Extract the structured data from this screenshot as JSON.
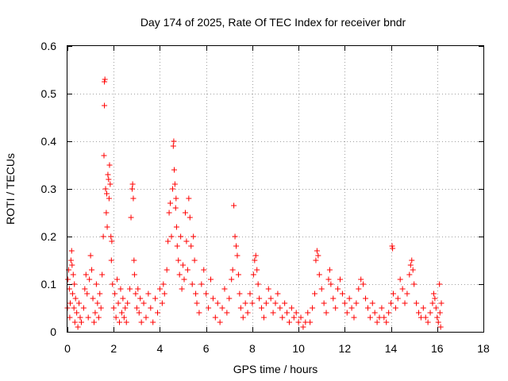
{
  "chart_data": {
    "type": "scatter",
    "title": "Day 174 of 2025, Rate Of TEC Index for receiver bndr",
    "xlabel": "GPS time / hours",
    "ylabel": "ROTI / TECUs",
    "xlim": [
      0,
      18
    ],
    "ylim": [
      0,
      0.6
    ],
    "x_ticks": [
      "0",
      "2",
      "4",
      "6",
      "8",
      "10",
      "12",
      "14",
      "16",
      "18"
    ],
    "y_ticks": [
      "0",
      "0.1",
      "0.2",
      "0.3",
      "0.4",
      "0.5",
      "0.6"
    ],
    "grid": true,
    "marker": "+",
    "marker_color": "#ff0000",
    "series": [
      {
        "points": [
          [
            0.0,
            0.05
          ],
          [
            0.02,
            0.11
          ],
          [
            0.05,
            0.13
          ],
          [
            0.08,
            0.09
          ],
          [
            0.1,
            0.03
          ],
          [
            0.12,
            0.06
          ],
          [
            0.15,
            0.15
          ],
          [
            0.18,
            0.17
          ],
          [
            0.2,
            0.14
          ],
          [
            0.22,
            0.08
          ],
          [
            0.25,
            0.12
          ],
          [
            0.28,
            0.05
          ],
          [
            0.3,
            0.1
          ],
          [
            0.32,
            0.02
          ],
          [
            0.35,
            0.07
          ],
          [
            0.4,
            0.04
          ],
          [
            0.45,
            0.01
          ],
          [
            0.5,
            0.06
          ],
          [
            0.55,
            0.03
          ],
          [
            0.6,
            0.02
          ],
          [
            0.7,
            0.05
          ],
          [
            0.75,
            0.09
          ],
          [
            0.8,
            0.12
          ],
          [
            0.85,
            0.08
          ],
          [
            0.9,
            0.03
          ],
          [
            0.95,
            0.11
          ],
          [
            1.0,
            0.16
          ],
          [
            1.05,
            0.13
          ],
          [
            1.1,
            0.07
          ],
          [
            1.15,
            0.02
          ],
          [
            1.2,
            0.04
          ],
          [
            1.25,
            0.1
          ],
          [
            1.3,
            0.06
          ],
          [
            1.35,
            0.03
          ],
          [
            1.4,
            0.08
          ],
          [
            1.45,
            0.05
          ],
          [
            1.5,
            0.12
          ],
          [
            1.55,
            0.2
          ],
          [
            1.58,
            0.37
          ],
          [
            1.6,
            0.475
          ],
          [
            1.6,
            0.525
          ],
          [
            1.62,
            0.53
          ],
          [
            1.65,
            0.3
          ],
          [
            1.68,
            0.25
          ],
          [
            1.7,
            0.29
          ],
          [
            1.72,
            0.22
          ],
          [
            1.75,
            0.33
          ],
          [
            1.78,
            0.32
          ],
          [
            1.8,
            0.28
          ],
          [
            1.82,
            0.35
          ],
          [
            1.85,
            0.31
          ],
          [
            1.88,
            0.2
          ],
          [
            1.9,
            0.15
          ],
          [
            1.92,
            0.19
          ],
          [
            1.95,
            0.1
          ],
          [
            2.0,
            0.05
          ],
          [
            2.05,
            0.08
          ],
          [
            2.1,
            0.03
          ],
          [
            2.15,
            0.11
          ],
          [
            2.2,
            0.06
          ],
          [
            2.25,
            0.02
          ],
          [
            2.3,
            0.09
          ],
          [
            2.35,
            0.04
          ],
          [
            2.4,
            0.07
          ],
          [
            2.45,
            0.03
          ],
          [
            2.5,
            0.05
          ],
          [
            2.55,
            0.02
          ],
          [
            2.6,
            0.06
          ],
          [
            2.7,
            0.09
          ],
          [
            2.75,
            0.24
          ],
          [
            2.8,
            0.3
          ],
          [
            2.82,
            0.31
          ],
          [
            2.85,
            0.28
          ],
          [
            2.88,
            0.15
          ],
          [
            2.9,
            0.12
          ],
          [
            2.95,
            0.08
          ],
          [
            3.0,
            0.05
          ],
          [
            3.05,
            0.09
          ],
          [
            3.1,
            0.04
          ],
          [
            3.15,
            0.07
          ],
          [
            3.2,
            0.02
          ],
          [
            3.3,
            0.06
          ],
          [
            3.4,
            0.03
          ],
          [
            3.5,
            0.08
          ],
          [
            3.6,
            0.05
          ],
          [
            3.7,
            0.02
          ],
          [
            3.8,
            0.07
          ],
          [
            3.9,
            0.04
          ],
          [
            4.0,
            0.09
          ],
          [
            4.1,
            0.06
          ],
          [
            4.15,
            0.1
          ],
          [
            4.2,
            0.08
          ],
          [
            4.3,
            0.13
          ],
          [
            4.35,
            0.19
          ],
          [
            4.4,
            0.25
          ],
          [
            4.45,
            0.27
          ],
          [
            4.5,
            0.2
          ],
          [
            4.55,
            0.3
          ],
          [
            4.58,
            0.39
          ],
          [
            4.6,
            0.4
          ],
          [
            4.62,
            0.34
          ],
          [
            4.65,
            0.31
          ],
          [
            4.68,
            0.26
          ],
          [
            4.7,
            0.28
          ],
          [
            4.72,
            0.22
          ],
          [
            4.75,
            0.18
          ],
          [
            4.8,
            0.15
          ],
          [
            4.85,
            0.12
          ],
          [
            4.9,
            0.2
          ],
          [
            4.95,
            0.09
          ],
          [
            5.0,
            0.14
          ],
          [
            5.05,
            0.11
          ],
          [
            5.1,
            0.25
          ],
          [
            5.15,
            0.19
          ],
          [
            5.2,
            0.13
          ],
          [
            5.25,
            0.28
          ],
          [
            5.3,
            0.24
          ],
          [
            5.35,
            0.18
          ],
          [
            5.4,
            0.1
          ],
          [
            5.45,
            0.2
          ],
          [
            5.5,
            0.15
          ],
          [
            5.55,
            0.08
          ],
          [
            5.6,
            0.06
          ],
          [
            5.7,
            0.04
          ],
          [
            5.8,
            0.1
          ],
          [
            5.9,
            0.13
          ],
          [
            6.0,
            0.08
          ],
          [
            6.1,
            0.05
          ],
          [
            6.2,
            0.11
          ],
          [
            6.3,
            0.07
          ],
          [
            6.4,
            0.03
          ],
          [
            6.5,
            0.06
          ],
          [
            6.6,
            0.02
          ],
          [
            6.7,
            0.05
          ],
          [
            6.8,
            0.09
          ],
          [
            6.9,
            0.04
          ],
          [
            7.0,
            0.07
          ],
          [
            7.1,
            0.11
          ],
          [
            7.15,
            0.13
          ],
          [
            7.2,
            0.265
          ],
          [
            7.25,
            0.2
          ],
          [
            7.3,
            0.18
          ],
          [
            7.35,
            0.16
          ],
          [
            7.4,
            0.12
          ],
          [
            7.45,
            0.08
          ],
          [
            7.5,
            0.05
          ],
          [
            7.6,
            0.03
          ],
          [
            7.7,
            0.06
          ],
          [
            7.8,
            0.04
          ],
          [
            7.9,
            0.08
          ],
          [
            8.0,
            0.06
          ],
          [
            8.05,
            0.12
          ],
          [
            8.1,
            0.15
          ],
          [
            8.15,
            0.16
          ],
          [
            8.2,
            0.13
          ],
          [
            8.25,
            0.1
          ],
          [
            8.3,
            0.07
          ],
          [
            8.4,
            0.05
          ],
          [
            8.5,
            0.03
          ],
          [
            8.6,
            0.06
          ],
          [
            8.7,
            0.09
          ],
          [
            8.8,
            0.07
          ],
          [
            8.9,
            0.04
          ],
          [
            9.0,
            0.06
          ],
          [
            9.1,
            0.08
          ],
          [
            9.2,
            0.05
          ],
          [
            9.3,
            0.03
          ],
          [
            9.4,
            0.06
          ],
          [
            9.5,
            0.04
          ],
          [
            9.6,
            0.02
          ],
          [
            9.7,
            0.05
          ],
          [
            9.8,
            0.03
          ],
          [
            9.9,
            0.04
          ],
          [
            10.0,
            0.02
          ],
          [
            10.1,
            0.03
          ],
          [
            10.2,
            0.01
          ],
          [
            10.3,
            0.02
          ],
          [
            10.4,
            0.04
          ],
          [
            10.5,
            0.02
          ],
          [
            10.6,
            0.05
          ],
          [
            10.7,
            0.08
          ],
          [
            10.75,
            0.15
          ],
          [
            10.8,
            0.17
          ],
          [
            10.85,
            0.16
          ],
          [
            10.9,
            0.12
          ],
          [
            11.0,
            0.09
          ],
          [
            11.1,
            0.06
          ],
          [
            11.2,
            0.04
          ],
          [
            11.3,
            0.11
          ],
          [
            11.35,
            0.13
          ],
          [
            11.4,
            0.1
          ],
          [
            11.5,
            0.07
          ],
          [
            11.6,
            0.05
          ],
          [
            11.7,
            0.09
          ],
          [
            11.8,
            0.11
          ],
          [
            11.9,
            0.08
          ],
          [
            12.0,
            0.06
          ],
          [
            12.1,
            0.04
          ],
          [
            12.2,
            0.07
          ],
          [
            12.3,
            0.05
          ],
          [
            12.4,
            0.03
          ],
          [
            12.5,
            0.06
          ],
          [
            12.6,
            0.09
          ],
          [
            12.7,
            0.11
          ],
          [
            12.8,
            0.1
          ],
          [
            12.9,
            0.07
          ],
          [
            13.0,
            0.05
          ],
          [
            13.1,
            0.03
          ],
          [
            13.2,
            0.06
          ],
          [
            13.3,
            0.04
          ],
          [
            13.4,
            0.02
          ],
          [
            13.5,
            0.03
          ],
          [
            13.6,
            0.05
          ],
          [
            13.7,
            0.03
          ],
          [
            13.8,
            0.02
          ],
          [
            13.9,
            0.04
          ],
          [
            14.0,
            0.06
          ],
          [
            14.05,
            0.18
          ],
          [
            14.07,
            0.175
          ],
          [
            14.1,
            0.08
          ],
          [
            14.2,
            0.05
          ],
          [
            14.3,
            0.07
          ],
          [
            14.4,
            0.11
          ],
          [
            14.5,
            0.09
          ],
          [
            14.6,
            0.06
          ],
          [
            14.7,
            0.08
          ],
          [
            14.8,
            0.12
          ],
          [
            14.85,
            0.14
          ],
          [
            14.9,
            0.15
          ],
          [
            14.95,
            0.13
          ],
          [
            15.0,
            0.1
          ],
          [
            15.1,
            0.06
          ],
          [
            15.2,
            0.04
          ],
          [
            15.3,
            0.03
          ],
          [
            15.4,
            0.05
          ],
          [
            15.5,
            0.03
          ],
          [
            15.6,
            0.02
          ],
          [
            15.7,
            0.04
          ],
          [
            15.8,
            0.06
          ],
          [
            15.85,
            0.08
          ],
          [
            15.9,
            0.07
          ],
          [
            15.95,
            0.05
          ],
          [
            16.0,
            0.03
          ],
          [
            16.05,
            0.02
          ],
          [
            16.1,
            0.1
          ],
          [
            16.12,
            0.04
          ],
          [
            16.15,
            0.01
          ],
          [
            16.18,
            0.06
          ]
        ]
      }
    ]
  }
}
